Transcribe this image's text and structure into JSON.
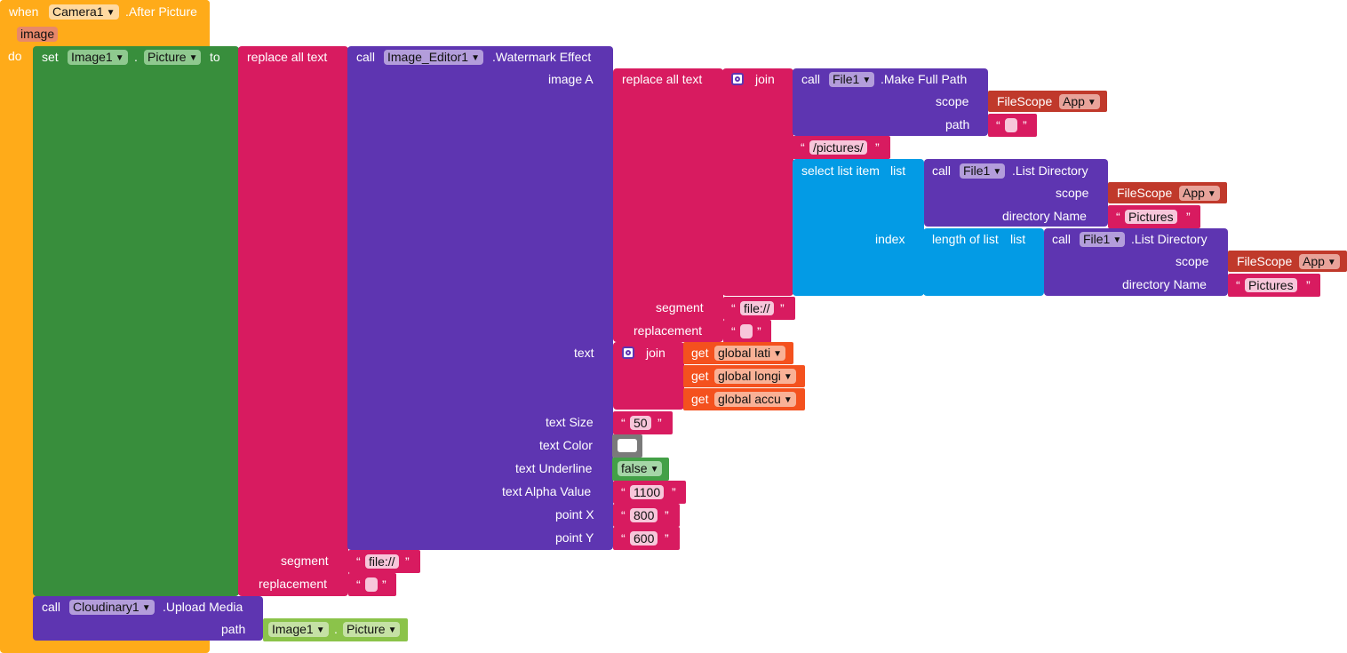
{
  "event": {
    "when": "when",
    "component": "Camera1",
    "event_name": ".After Picture",
    "param": "image",
    "do": "do"
  },
  "set": {
    "set": "set",
    "component": "Image1",
    "dot": ".",
    "property": "Picture",
    "to": "to"
  },
  "outer_replace": {
    "label": "replace all text",
    "segment_label": "segment",
    "segment_value": "file://",
    "replacement_label": "replacement",
    "replacement_value": ""
  },
  "watermark": {
    "call": "call",
    "component": "Image_Editor1",
    "method": ".Watermark Effect",
    "image_a": "image A",
    "text": "text",
    "text_size": "text Size",
    "text_color": "text Color",
    "text_underline": "text Underline",
    "text_alpha": "text Alpha Value",
    "point_x": "point X",
    "point_y": "point Y",
    "text_size_value": "50",
    "text_underline_value": "false",
    "text_alpha_value": "1100",
    "point_x_value": "800",
    "point_y_value": "600"
  },
  "inner_replace": {
    "label": "replace all text",
    "segment_label": "segment",
    "segment_value": "file://",
    "replacement_label": "replacement",
    "replacement_value": ""
  },
  "join1": {
    "label": "join"
  },
  "fullpath": {
    "call": "call",
    "component": "File1",
    "method": ".Make Full Path",
    "scope_label": "scope",
    "scope_block": "FileScope",
    "scope_value": "App",
    "path_label": "path",
    "path_value": ""
  },
  "pictures_str": "/pictures/",
  "select": {
    "label": "select list item",
    "list": "list",
    "index": "index"
  },
  "listdir1": {
    "call": "call",
    "component": "File1",
    "method": ".List Directory",
    "scope_label": "scope",
    "scope_block": "FileScope",
    "scope_value": "App",
    "dir_label": "directory Name",
    "dir_value": "Pictures"
  },
  "length": {
    "label": "length of list",
    "list": "list"
  },
  "listdir2": {
    "call": "call",
    "component": "File1",
    "method": ".List Directory",
    "scope_label": "scope",
    "scope_block": "FileScope",
    "scope_value": "App",
    "dir_label": "directory Name",
    "dir_value": "Pictures"
  },
  "join2": {
    "label": "join",
    "get": "get",
    "vars": [
      "global lati",
      "global longi",
      "global accu"
    ]
  },
  "upload": {
    "call": "call",
    "component": "Cloudinary1",
    "method": ".Upload Media",
    "path_label": "path",
    "image_comp": "Image1",
    "dot": ".",
    "image_prop": "Picture"
  },
  "quote_open": "“",
  "quote_close": "”",
  "colors": {
    "event": "#ffab19",
    "set": "#388e3c",
    "text": "#d81b60",
    "component": "#5e35b1",
    "list": "#039be5",
    "variable": "#f4511e",
    "filescope": "#c0392b",
    "logic": "#43a047",
    "color": "#7a7a7a"
  }
}
